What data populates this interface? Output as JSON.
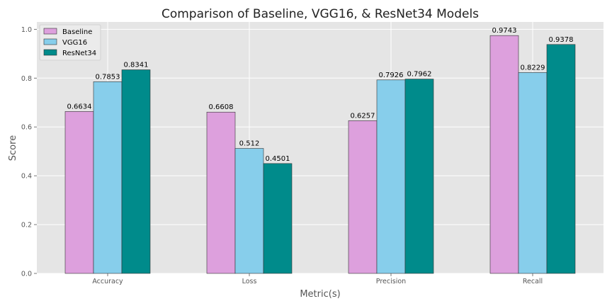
{
  "chart_data": {
    "type": "bar",
    "title": "Comparison of Baseline, VGG16, & ResNet34 Models",
    "xlabel": "Metric(s)",
    "ylabel": "Score",
    "categories": [
      "Accuracy",
      "Loss",
      "Precision",
      "Recall"
    ],
    "ylim": [
      0,
      1.03
    ],
    "yticks": [
      "0.0",
      "0.2",
      "0.4",
      "0.6",
      "0.8",
      "1.0"
    ],
    "grid": true,
    "legend_position": "top-left",
    "series": [
      {
        "name": "Baseline",
        "color": "#dda0dd",
        "values": [
          0.6634,
          0.6608,
          0.6257,
          0.9743
        ],
        "labels": [
          "0.6634",
          "0.6608",
          "0.6257",
          "0.9743"
        ]
      },
      {
        "name": "VGG16",
        "color": "#87ceeb",
        "values": [
          0.7853,
          0.512,
          0.7926,
          0.8229
        ],
        "labels": [
          "0.7853",
          "0.512",
          "0.7926",
          "0.8229"
        ]
      },
      {
        "name": "ResNet34",
        "color": "#008b8b",
        "values": [
          0.8341,
          0.4501,
          0.7962,
          0.9378
        ],
        "labels": [
          "0.8341",
          "0.4501",
          "0.7962",
          "0.9378"
        ]
      }
    ]
  }
}
